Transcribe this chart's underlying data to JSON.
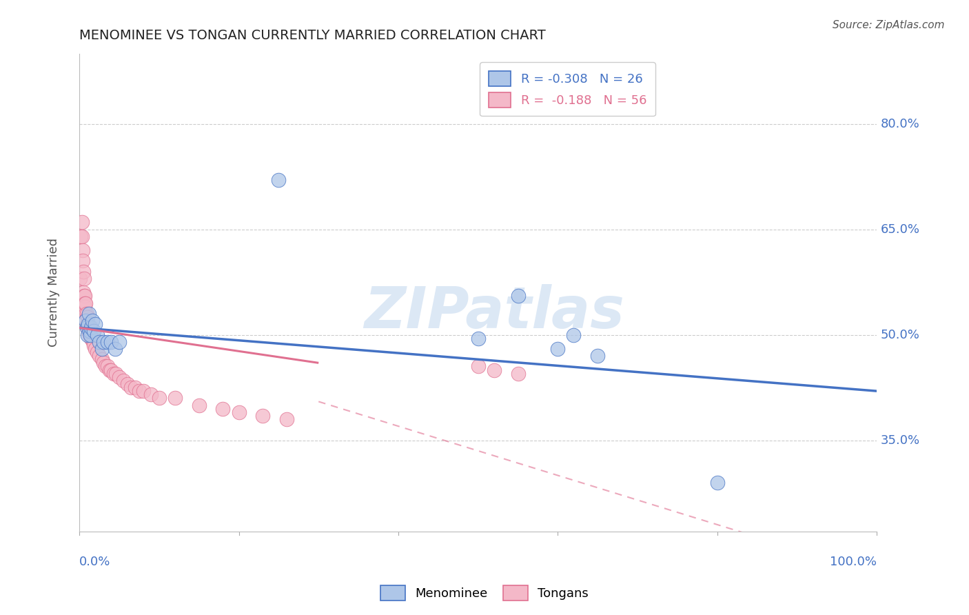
{
  "title": "MENOMINEE VS TONGAN CURRENTLY MARRIED CORRELATION CHART",
  "source": "Source: ZipAtlas.com",
  "ylabel": "Currently Married",
  "ytick_labels": [
    "80.0%",
    "65.0%",
    "50.0%",
    "35.0%"
  ],
  "ytick_values": [
    0.8,
    0.65,
    0.5,
    0.35
  ],
  "blue_color": "#aec6e8",
  "blue_edge_color": "#4472c4",
  "pink_color": "#f4b8c8",
  "pink_edge_color": "#e07090",
  "watermark_text": "ZIPatlas",
  "menominee_x": [
    0.008,
    0.009,
    0.01,
    0.011,
    0.012,
    0.013,
    0.014,
    0.015,
    0.016,
    0.018,
    0.02,
    0.022,
    0.025,
    0.028,
    0.03,
    0.035,
    0.04,
    0.045,
    0.05,
    0.25,
    0.5,
    0.55,
    0.6,
    0.62,
    0.65,
    0.8
  ],
  "menominee_y": [
    0.52,
    0.51,
    0.5,
    0.515,
    0.53,
    0.505,
    0.5,
    0.51,
    0.52,
    0.505,
    0.515,
    0.5,
    0.49,
    0.48,
    0.49,
    0.49,
    0.49,
    0.48,
    0.49,
    0.72,
    0.495,
    0.555,
    0.48,
    0.5,
    0.47,
    0.29
  ],
  "tongan_x": [
    0.001,
    0.002,
    0.003,
    0.003,
    0.004,
    0.004,
    0.005,
    0.005,
    0.006,
    0.006,
    0.007,
    0.007,
    0.007,
    0.008,
    0.008,
    0.009,
    0.009,
    0.01,
    0.01,
    0.011,
    0.012,
    0.013,
    0.014,
    0.015,
    0.016,
    0.017,
    0.018,
    0.02,
    0.022,
    0.025,
    0.028,
    0.03,
    0.033,
    0.035,
    0.038,
    0.04,
    0.043,
    0.046,
    0.05,
    0.055,
    0.06,
    0.065,
    0.07,
    0.075,
    0.08,
    0.09,
    0.1,
    0.12,
    0.15,
    0.18,
    0.2,
    0.23,
    0.26,
    0.5,
    0.52,
    0.55
  ],
  "tongan_y": [
    0.58,
    0.64,
    0.64,
    0.66,
    0.62,
    0.605,
    0.56,
    0.59,
    0.555,
    0.58,
    0.555,
    0.54,
    0.545,
    0.53,
    0.545,
    0.515,
    0.53,
    0.51,
    0.525,
    0.505,
    0.51,
    0.5,
    0.51,
    0.495,
    0.5,
    0.49,
    0.485,
    0.48,
    0.475,
    0.47,
    0.465,
    0.46,
    0.455,
    0.455,
    0.45,
    0.45,
    0.445,
    0.445,
    0.44,
    0.435,
    0.43,
    0.425,
    0.425,
    0.42,
    0.42,
    0.415,
    0.41,
    0.41,
    0.4,
    0.395,
    0.39,
    0.385,
    0.38,
    0.455,
    0.45,
    0.445
  ],
  "blue_trend": [
    0.0,
    1.0,
    0.51,
    0.42
  ],
  "pink_trend_solid": [
    0.0,
    0.3,
    0.51,
    0.46
  ],
  "pink_trend_dashed": [
    0.0,
    1.0,
    0.51,
    0.16
  ],
  "xlim": [
    0.0,
    1.0
  ],
  "ylim": [
    0.22,
    0.9
  ]
}
